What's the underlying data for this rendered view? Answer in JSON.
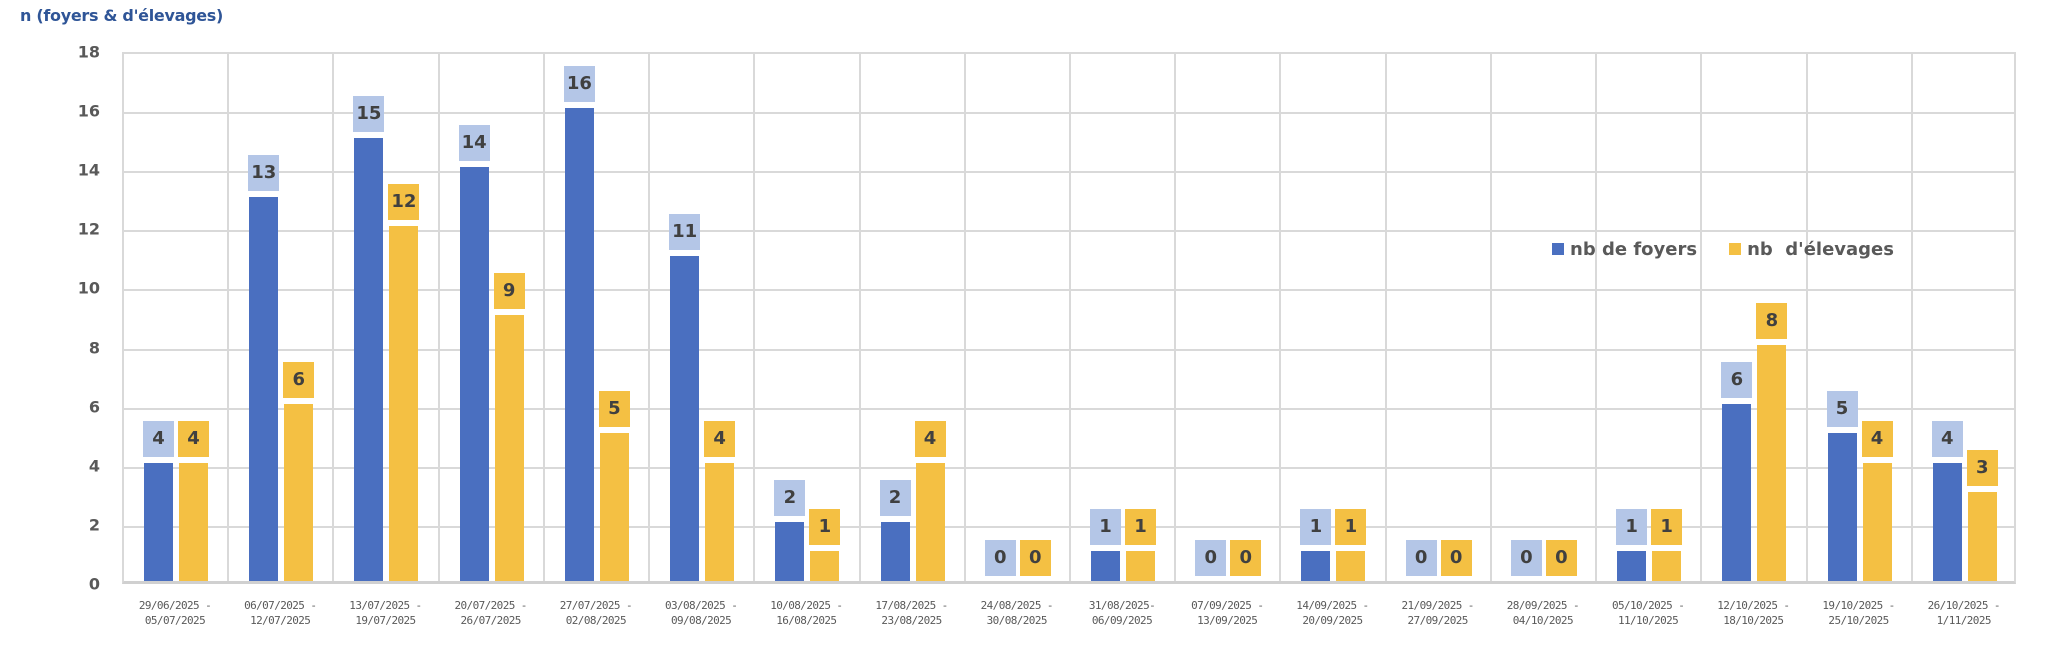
{
  "chart_data": {
    "type": "bar",
    "title": "n (foyers & d'élevages)",
    "xlabel": "",
    "ylabel": "n (foyers & d'élevages)",
    "ylim": [
      0,
      18
    ],
    "yticks": [
      0,
      2,
      4,
      6,
      8,
      10,
      12,
      14,
      16,
      18
    ],
    "grid": true,
    "legend_position": "upper right inside plot",
    "categories": [
      [
        "29/06/2025 -",
        "05/07/2025"
      ],
      [
        "06/07/2025 -",
        "12/07/2025"
      ],
      [
        "13/07/2025 -",
        "19/07/2025"
      ],
      [
        "20/07/2025 -",
        "26/07/2025"
      ],
      [
        "27/07/2025 -",
        "02/08/2025"
      ],
      [
        "03/08/2025 -",
        "09/08/2025"
      ],
      [
        "10/08/2025 -",
        "16/08/2025"
      ],
      [
        "17/08/2025 -",
        "23/08/2025"
      ],
      [
        "24/08/2025 -",
        "30/08/2025"
      ],
      [
        "31/08/2025-",
        "06/09/2025"
      ],
      [
        "07/09/2025 -",
        "13/09/2025"
      ],
      [
        "14/09/2025 -",
        "20/09/2025"
      ],
      [
        "21/09/2025 -",
        "27/09/2025"
      ],
      [
        "28/09/2025 -",
        "04/10/2025"
      ],
      [
        "05/10/2025 -",
        "11/10/2025"
      ],
      [
        "12/10/2025 -",
        "18/10/2025"
      ],
      [
        "19/10/2025 -",
        "25/10/2025"
      ],
      [
        "26/10/2025 -",
        "1/11/2025"
      ]
    ],
    "series": [
      {
        "name": "nb de foyers",
        "color": "#4a6fc0",
        "label_bg": "#b4c6e7",
        "values": [
          4,
          13,
          15,
          14,
          16,
          11,
          2,
          2,
          0,
          1,
          0,
          1,
          0,
          0,
          1,
          6,
          5,
          4
        ]
      },
      {
        "name": "nb  d'élevages",
        "color": "#f4c043",
        "label_bg": "#f4c043",
        "values": [
          4,
          6,
          12,
          9,
          5,
          4,
          1,
          4,
          0,
          1,
          0,
          1,
          0,
          0,
          1,
          8,
          4,
          3
        ]
      }
    ]
  },
  "colors": {
    "title": "#2f5597",
    "grid": "#d9d9d9",
    "axis_text": "#595959",
    "label_text": "#404040"
  }
}
